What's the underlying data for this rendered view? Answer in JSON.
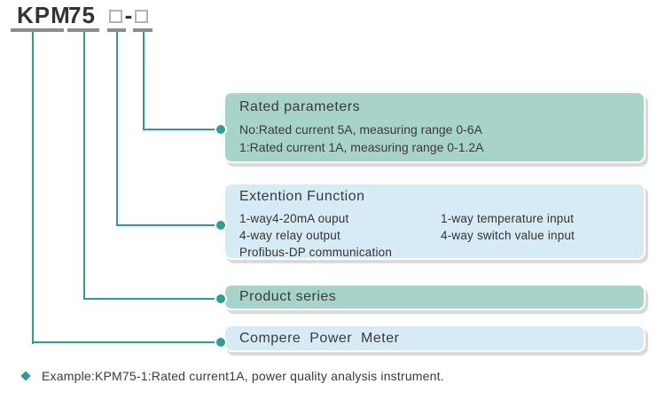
{
  "model_code": {
    "prefix": "KPM",
    "series": "75",
    "separator": "-",
    "digit_placeholders": [
      "□",
      "□"
    ]
  },
  "callouts": {
    "rated_parameters": {
      "title": "Rated parameters",
      "options": [
        "No:Rated current 5A, measuring range 0-6A",
        "1:Rated current 1A, measuring range 0-1.2A"
      ]
    },
    "extension_function": {
      "title": "Extention Function",
      "left_column": [
        "1-way4-20mA ouput",
        "4-way relay output",
        "Profibus-DP communication"
      ],
      "right_column": [
        "1-way temperature input",
        "4-way switch value input"
      ]
    },
    "product_series": {
      "title": "Product series"
    },
    "power_meter": {
      "title": "Compere Power Meter"
    }
  },
  "footer": {
    "example": "Example:KPM75-1:Rated current1A, power quality analysis instrument."
  },
  "colors": {
    "teal_fill": "#a8d3cb",
    "blue_fill": "#d7ebf6",
    "connector_teal": "#2f9d95",
    "underline_gray": "#8c8c8c",
    "placeholder_border_gray": "#b3b3b3",
    "text_dark": "#3a3a3a",
    "shadow_gray": "#dadada"
  }
}
